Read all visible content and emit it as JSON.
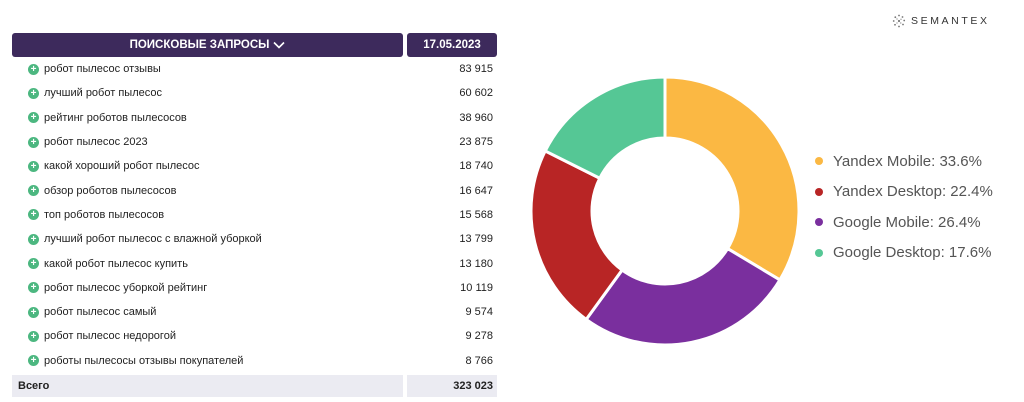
{
  "table": {
    "header_query": "ПОИСКОВЫЕ ЗАПРОСЫ",
    "header_date": "17.05.2023",
    "rows": [
      {
        "query": "робот пылесос отзывы",
        "value": "83 915"
      },
      {
        "query": "лучший робот пылесос",
        "value": "60 602"
      },
      {
        "query": "рейтинг роботов пылесосов",
        "value": "38 960"
      },
      {
        "query": "робот пылесос 2023",
        "value": "23 875"
      },
      {
        "query": "какой хороший робот пылесос",
        "value": "18 740"
      },
      {
        "query": "обзор роботов пылесосов",
        "value": "16 647"
      },
      {
        "query": "топ роботов пылесосов",
        "value": "15 568"
      },
      {
        "query": "лучший робот пылесос с влажной уборкой",
        "value": "13 799"
      },
      {
        "query": "какой робот пылесос купить",
        "value": "13 180"
      },
      {
        "query": "робот пылесос уборкой рейтинг",
        "value": "10 119"
      },
      {
        "query": "робот пылесос самый",
        "value": "9 574"
      },
      {
        "query": "робот пылесос недорогой",
        "value": "9 278"
      },
      {
        "query": "роботы пылесосы отзывы покупателей",
        "value": "8 766"
      }
    ],
    "total_label": "Всего",
    "total_value": "323 023"
  },
  "brand": {
    "name": "SEMANTEX"
  },
  "chart_data": {
    "type": "pie",
    "donut": true,
    "categories": [
      "Yandex Mobile",
      "Yandex Desktop",
      "Google Mobile",
      "Google Desktop"
    ],
    "values": [
      33.6,
      22.4,
      26.4,
      17.6
    ],
    "colors": [
      "#fbb843",
      "#b82525",
      "#7a2f9e",
      "#55c795"
    ],
    "legend_labels": [
      "Yandex Mobile: 33.6%",
      "Yandex Desktop: 22.4%",
      "Google Mobile: 26.4%",
      "Google Desktop: 17.6%"
    ],
    "legend_position": "right"
  }
}
